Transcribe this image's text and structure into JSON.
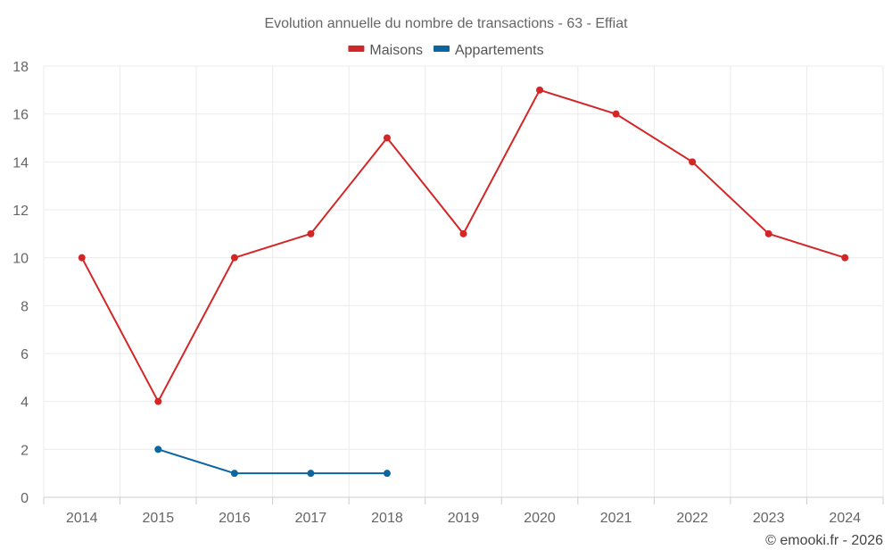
{
  "chart_data": {
    "type": "line",
    "title": "Evolution annuelle du nombre de transactions - 63 - Effiat",
    "categories": [
      "2014",
      "2015",
      "2016",
      "2017",
      "2018",
      "2019",
      "2020",
      "2021",
      "2022",
      "2023",
      "2024"
    ],
    "series": [
      {
        "name": "Maisons",
        "color": "#d32626",
        "values": [
          10,
          4,
          10,
          11,
          15,
          11,
          17,
          16,
          14,
          11,
          10
        ]
      },
      {
        "name": "Appartements",
        "color": "#0b66a0",
        "values": [
          null,
          2,
          1,
          1,
          1,
          null,
          null,
          null,
          null,
          null,
          null
        ]
      }
    ],
    "xlabel": "",
    "ylabel": "",
    "ylim": [
      0,
      18
    ],
    "yticks": [
      0,
      2,
      4,
      6,
      8,
      10,
      12,
      14,
      16,
      18
    ],
    "grid": true,
    "legend": "top-center"
  },
  "credit": "© emooki.fr - 2026"
}
